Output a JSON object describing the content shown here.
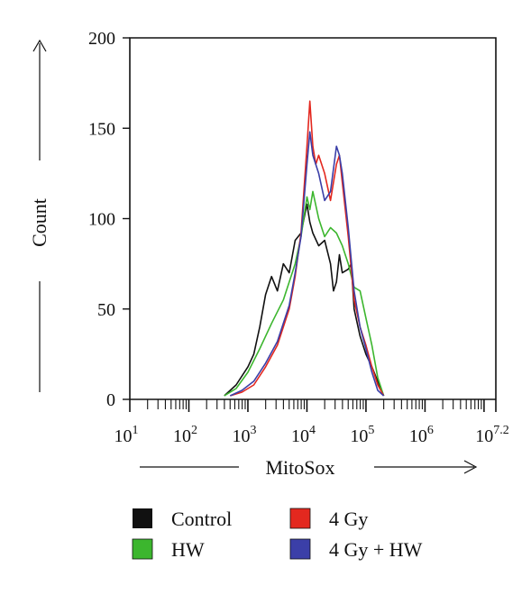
{
  "chart_data": {
    "type": "line",
    "title": "",
    "xlabel": "MitoSox",
    "ylabel": "Count",
    "x_scale": "log10",
    "xlim_log10": [
      1,
      7.2
    ],
    "ylim": [
      0,
      200
    ],
    "y_ticks": [
      0,
      50,
      100,
      150,
      200
    ],
    "x_tick_labels": [
      {
        "base": "10",
        "exp": "1",
        "value_log10": 1
      },
      {
        "base": "10",
        "exp": "2",
        "value_log10": 2
      },
      {
        "base": "10",
        "exp": "3",
        "value_log10": 3
      },
      {
        "base": "10",
        "exp": "4",
        "value_log10": 4
      },
      {
        "base": "10",
        "exp": "5",
        "value_log10": 5
      },
      {
        "base": "10",
        "exp": "6",
        "value_log10": 6
      },
      {
        "base": "10",
        "exp": "7.2",
        "value_log10": 7.2
      }
    ],
    "grid": false,
    "legend_position": "bottom",
    "series": [
      {
        "name": "Control",
        "color": "#111111",
        "x_log10": [
          2.6,
          2.8,
          3.0,
          3.1,
          3.2,
          3.3,
          3.4,
          3.5,
          3.6,
          3.7,
          3.8,
          3.9,
          4.0,
          4.05,
          4.1,
          4.2,
          4.3,
          4.4,
          4.45,
          4.5,
          4.55,
          4.6,
          4.7,
          4.75,
          4.8,
          4.9,
          5.0,
          5.1,
          5.2,
          5.3
        ],
        "y": [
          2,
          8,
          18,
          25,
          40,
          58,
          68,
          60,
          75,
          70,
          88,
          92,
          108,
          98,
          92,
          85,
          88,
          75,
          60,
          65,
          80,
          70,
          72,
          75,
          50,
          35,
          25,
          18,
          10,
          2
        ]
      },
      {
        "name": "HW",
        "color": "#3cb62e",
        "x_log10": [
          2.6,
          2.8,
          3.0,
          3.2,
          3.4,
          3.6,
          3.8,
          3.9,
          4.0,
          4.05,
          4.1,
          4.2,
          4.3,
          4.4,
          4.5,
          4.6,
          4.7,
          4.8,
          4.9,
          5.0,
          5.1,
          5.2,
          5.3
        ],
        "y": [
          2,
          6,
          15,
          28,
          42,
          55,
          75,
          90,
          112,
          105,
          115,
          100,
          90,
          95,
          92,
          85,
          75,
          62,
          60,
          45,
          30,
          12,
          2
        ]
      },
      {
        "name": "4 Gy",
        "color": "#e3281f",
        "x_log10": [
          2.7,
          2.9,
          3.1,
          3.3,
          3.5,
          3.7,
          3.8,
          3.9,
          4.0,
          4.05,
          4.1,
          4.15,
          4.2,
          4.3,
          4.4,
          4.5,
          4.55,
          4.6,
          4.7,
          4.8,
          4.9,
          5.0,
          5.1,
          5.2,
          5.3
        ],
        "y": [
          2,
          4,
          8,
          18,
          30,
          50,
          68,
          92,
          140,
          165,
          140,
          130,
          135,
          125,
          110,
          130,
          135,
          120,
          90,
          55,
          40,
          30,
          18,
          8,
          2
        ]
      },
      {
        "name": "4 Gy + HW",
        "color": "#3b3fa8",
        "x_log10": [
          2.7,
          2.9,
          3.1,
          3.3,
          3.5,
          3.7,
          3.8,
          3.9,
          4.0,
          4.05,
          4.1,
          4.2,
          4.3,
          4.4,
          4.5,
          4.55,
          4.6,
          4.7,
          4.8,
          4.9,
          5.0,
          5.1,
          5.2,
          5.3
        ],
        "y": [
          2,
          5,
          10,
          20,
          32,
          52,
          70,
          90,
          130,
          148,
          135,
          125,
          110,
          115,
          140,
          135,
          125,
          95,
          60,
          40,
          28,
          15,
          5,
          2
        ]
      }
    ]
  },
  "legend": {
    "items": [
      {
        "label": "Control",
        "color": "#111111"
      },
      {
        "label": "4 Gy",
        "color": "#e3281f"
      },
      {
        "label": "HW",
        "color": "#3cb62e"
      },
      {
        "label": "4 Gy + HW",
        "color": "#3b3fa8"
      }
    ]
  }
}
